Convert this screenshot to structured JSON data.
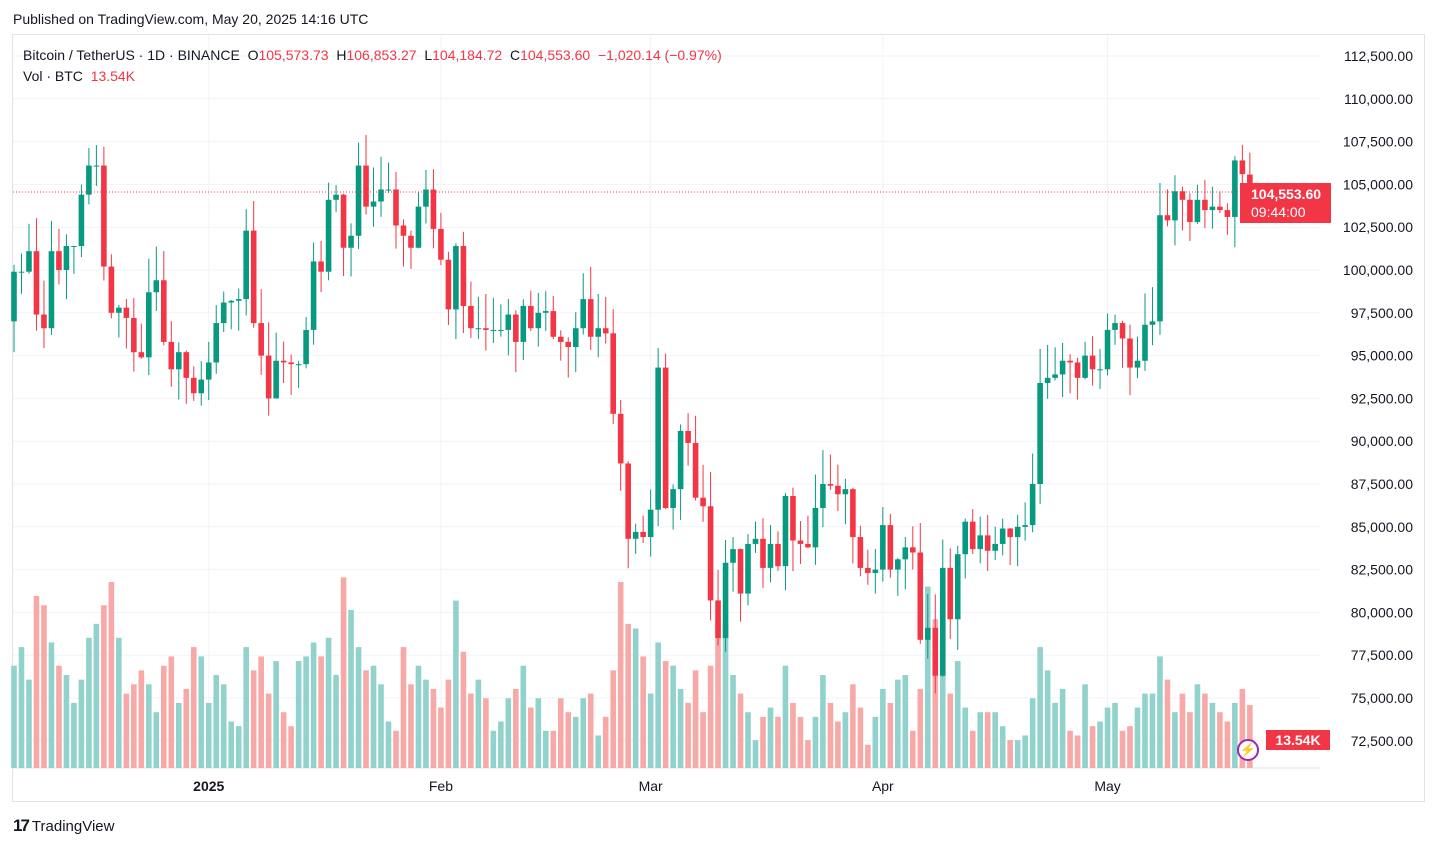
{
  "published": "Published on TradingView.com, May 20, 2025 14:16 UTC",
  "legend": {
    "symbol": "Bitcoin / TetherUS · 1D · BINANCE",
    "o_label": "O",
    "o": "105,573.73",
    "h_label": "H",
    "h": "106,853.27",
    "l_label": "L",
    "l": "104,184.72",
    "c_label": "C",
    "c": "104,553.60",
    "change": "−1,020.14 (−0.97%)",
    "vol_label": "Vol · BTC",
    "vol": "13.54K"
  },
  "price_badge": {
    "price": "104,553.60",
    "countdown": "09:44:00"
  },
  "volume_badge": "13.54K",
  "footer": {
    "brand": "TradingView"
  },
  "colors": {
    "up": "#089981",
    "down": "#f23645",
    "vol_up": "#92d2cc",
    "vol_down": "#f7a9a7"
  },
  "chart_data": {
    "type": "candlestick",
    "title": "Bitcoin / TetherUS · 1D · BINANCE",
    "start_date": "2024-12-06",
    "end_date": "2025-05-20",
    "ylim": [
      70000,
      115000
    ],
    "y_ticks": [
      "112,500.00",
      "110,000.00",
      "107,500.00",
      "105,000.00",
      "102,500.00",
      "100,000.00",
      "97,500.00",
      "95,000.00",
      "92,500.00",
      "90,000.00",
      "87,500.00",
      "85,000.00",
      "82,500.00",
      "80,000.00",
      "77,500.00",
      "75,000.00",
      "72,500.00"
    ],
    "x_ticks": [
      {
        "label": "2025",
        "day": 26
      },
      {
        "label": "Feb",
        "day": 57
      },
      {
        "label": "Mar",
        "day": 85
      },
      {
        "label": "Apr",
        "day": 116
      },
      {
        "label": "May",
        "day": 146
      }
    ],
    "first_open": 97000,
    "last_candle": {
      "open": 105573.73,
      "high": 106853.27,
      "low": 104184.72,
      "close": 104553.6,
      "volume_k": 13.54
    },
    "close_k": [
      99.9,
      99.9,
      101.1,
      97.4,
      96.6,
      101.1,
      100.0,
      101.4,
      101.4,
      104.4,
      106.1,
      106.1,
      100.2,
      97.5,
      97.8,
      97.2,
      95.2,
      94.9,
      98.7,
      99.4,
      95.8,
      94.2,
      95.2,
      93.7,
      92.8,
      93.6,
      94.6,
      96.9,
      98.1,
      98.2,
      98.3,
      102.3,
      96.9,
      95.0,
      92.5,
      94.7,
      94.6,
      94.5,
      94.5,
      96.5,
      100.5,
      99.9,
      104.1,
      104.4,
      101.3,
      102.0,
      106.1,
      103.7,
      104.0,
      104.7,
      104.7,
      102.6,
      102.0,
      101.3,
      103.7,
      104.7,
      102.4,
      100.6,
      97.7,
      101.4,
      97.9,
      96.6,
      96.6,
      96.5,
      96.5,
      96.5,
      97.4,
      95.8,
      97.9,
      96.6,
      97.5,
      97.6,
      96.1,
      95.8,
      95.5,
      96.6,
      98.3,
      96.1,
      96.6,
      96.3,
      91.6,
      88.7,
      84.3,
      84.7,
      84.4,
      86.0,
      94.3,
      86.1,
      87.2,
      90.6,
      89.9,
      86.7,
      86.2,
      80.7,
      78.5,
      82.9,
      83.7,
      81.1,
      84.0,
      84.3,
      82.6,
      84.0,
      82.7,
      86.8,
      84.2,
      84.0,
      83.8,
      86.1,
      87.5,
      87.4,
      86.9,
      87.2,
      84.4,
      82.6,
      82.3,
      82.5,
      85.1,
      82.5,
      83.1,
      83.8,
      83.5,
      78.4,
      79.1,
      76.3,
      82.6,
      79.6,
      83.4,
      85.3,
      83.7,
      84.5,
      83.6,
      84.0,
      84.9,
      84.4,
      85.0,
      85.1,
      87.5,
      93.4,
      93.7,
      93.9,
      94.7,
      94.6,
      93.7,
      95.0,
      94.2,
      94.2,
      96.5,
      96.9,
      96.0,
      94.3,
      94.7,
      96.8,
      97.0,
      103.2,
      102.9,
      104.6,
      104.1,
      102.8,
      104.1,
      103.5,
      103.7,
      103.5,
      103.1,
      106.4,
      105.6,
      104.55
    ],
    "volume_k": [
      22,
      26,
      19,
      37,
      35,
      27,
      22,
      20,
      14,
      19,
      28,
      31,
      35,
      40,
      28,
      16,
      18,
      21,
      18,
      12,
      22,
      24,
      14,
      17,
      26,
      24,
      14,
      20,
      18,
      10,
      9,
      26,
      21,
      24,
      16,
      23,
      12,
      9,
      23,
      24,
      27,
      24,
      28,
      20,
      41,
      34,
      26,
      21,
      22,
      18,
      10,
      8,
      26,
      18,
      22,
      19,
      17,
      13,
      19,
      36,
      25,
      16,
      19,
      15,
      8,
      10,
      15,
      17,
      22,
      13,
      15,
      8,
      8,
      15,
      12,
      11,
      15,
      16,
      7,
      11,
      21,
      40,
      31,
      30,
      24,
      16,
      27,
      23,
      22,
      17,
      14,
      21,
      12,
      22,
      32,
      31,
      20,
      16,
      12,
      6,
      11,
      13,
      11,
      22,
      14,
      11,
      6,
      11,
      20,
      14,
      10,
      12,
      18,
      13,
      5,
      11,
      17,
      14,
      19,
      20,
      8,
      17,
      39,
      32,
      37,
      16,
      23,
      13,
      8,
      12,
      12,
      12,
      9,
      6,
      6,
      7,
      15,
      26,
      21,
      14,
      17,
      8,
      7,
      18,
      9,
      10,
      13,
      14,
      8,
      9,
      13,
      16,
      16,
      24,
      19,
      12,
      16,
      12,
      18,
      16,
      14,
      12,
      10,
      14,
      17,
      13.54
    ]
  }
}
